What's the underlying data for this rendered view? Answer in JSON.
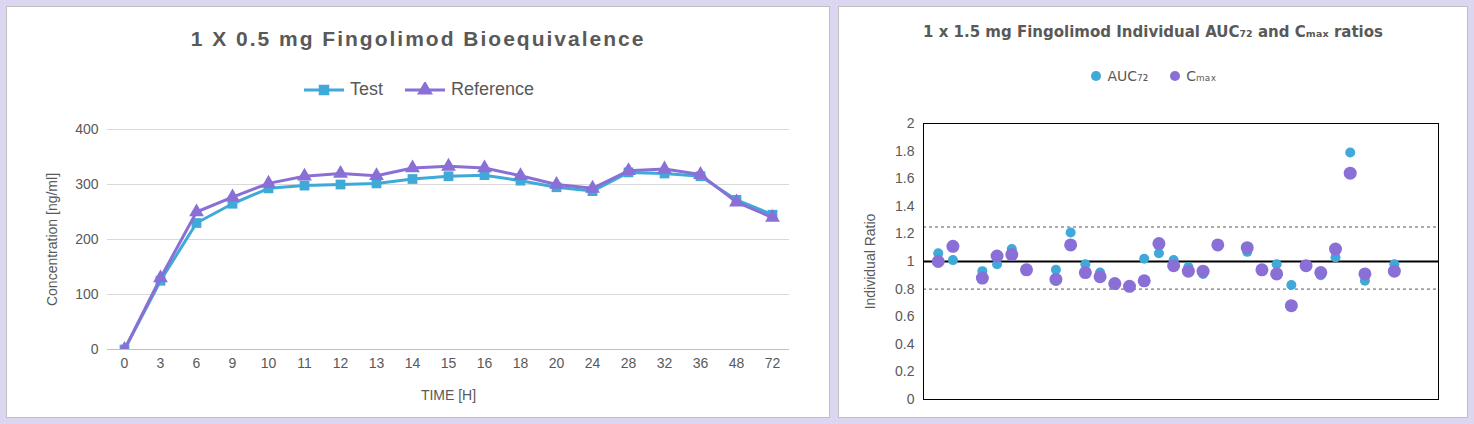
{
  "chart_data": [
    {
      "type": "line",
      "title": "1 X 0.5 mg Fingolimod Bioequivalence",
      "x_label": "TIME [H]",
      "y_label": "Concentration [ng/ml]",
      "categories": [
        "0",
        "3",
        "6",
        "9",
        "10",
        "11",
        "12",
        "13",
        "14",
        "15",
        "16",
        "18",
        "20",
        "24",
        "28",
        "32",
        "36",
        "48",
        "72"
      ],
      "series": [
        {
          "name": "Test",
          "color": "#3fa9d8",
          "marker": "square",
          "values": [
            0,
            125,
            230,
            265,
            293,
            298,
            300,
            302,
            310,
            315,
            317,
            307,
            295,
            288,
            322,
            320,
            315,
            272,
            245
          ]
        },
        {
          "name": "Reference",
          "color": "#8a6fd6",
          "marker": "triangle",
          "values": [
            0,
            130,
            250,
            277,
            302,
            315,
            320,
            316,
            330,
            333,
            330,
            316,
            300,
            293,
            325,
            328,
            318,
            268,
            240
          ]
        }
      ],
      "ylim": [
        0,
        400
      ],
      "yticks": [
        0,
        100,
        200,
        300,
        400
      ],
      "grid": true,
      "legend": "top"
    },
    {
      "type": "scatter",
      "title": "1 x 1.5 mg Fingolimod Individual AUC₇₂ and Cₘₐₓ ratios",
      "y_label": "Individual Ratio",
      "x": [
        1,
        2,
        4,
        5,
        6,
        7,
        9,
        10,
        11,
        12,
        13,
        14,
        15,
        16,
        17,
        18,
        19,
        20,
        22,
        23,
        24,
        25,
        26,
        27,
        28,
        29,
        30,
        32
      ],
      "series": [
        {
          "name": "AUC₇₂",
          "color": "#3fa9d8",
          "marker": "circle",
          "values": [
            1.06,
            1.01,
            0.93,
            0.98,
            1.09,
            0.94,
            0.94,
            1.21,
            0.98,
            0.92,
            0.84,
            0.82,
            1.02,
            1.06,
            1.01,
            0.96,
            0.91,
            1.12,
            1.07,
            0.94,
            0.98,
            0.83,
            0.97,
            0.9,
            1.03,
            1.79,
            0.86,
            0.98
          ]
        },
        {
          "name": "Cₘₐₓ",
          "color": "#8a6fd6",
          "marker": "circle",
          "values": [
            1.0,
            1.11,
            0.88,
            1.04,
            1.05,
            0.94,
            0.87,
            1.12,
            0.92,
            0.89,
            0.84,
            0.82,
            0.86,
            1.13,
            0.97,
            0.93,
            0.93,
            1.12,
            1.1,
            0.94,
            0.91,
            0.68,
            0.97,
            0.92,
            1.09,
            1.64,
            0.91,
            0.93
          ]
        }
      ],
      "reference_lines": [
        {
          "value": 1,
          "line_style": "solid"
        },
        {
          "value": 0.8,
          "line_style": "dashed"
        },
        {
          "value": 1.25,
          "line_style": "dashed"
        }
      ],
      "xlim": [
        0,
        35
      ],
      "xticks": [],
      "ylim": [
        0,
        2
      ],
      "yticks": [
        0,
        0.2,
        0.4,
        0.6,
        0.8,
        1,
        1.2,
        1.4,
        1.6,
        1.8,
        2
      ],
      "grid": false,
      "legend": "top",
      "tick_labels": "y"
    }
  ]
}
